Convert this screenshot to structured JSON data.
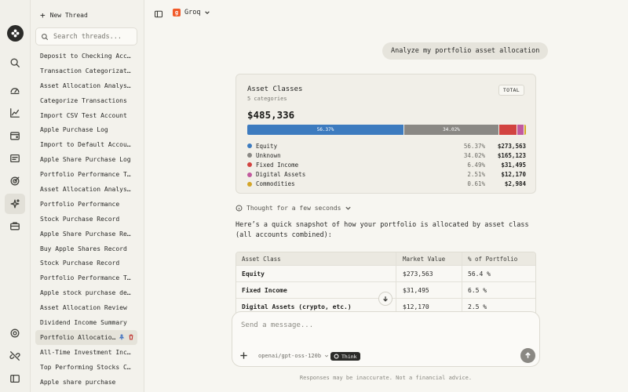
{
  "sidebar_threads": {
    "new_thread_label": "New Thread",
    "search_placeholder": "Search threads...",
    "items": [
      {
        "label": "Deposit to Checking Account"
      },
      {
        "label": "Transaction Categorization …"
      },
      {
        "label": "Asset Allocation Analysis R…"
      },
      {
        "label": "Categorize Transactions"
      },
      {
        "label": "Import CSV Test Account"
      },
      {
        "label": "Apple Purchase Log"
      },
      {
        "label": "Import to Default Account"
      },
      {
        "label": "Apple Share Purchase Log"
      },
      {
        "label": "Portfolio Performance This …"
      },
      {
        "label": "Asset Allocation Analysis"
      },
      {
        "label": "Portfolio Performance"
      },
      {
        "label": "Stock Purchase Record"
      },
      {
        "label": "Apple Share Purchase Record"
      },
      {
        "label": "Buy Apple Shares Record"
      },
      {
        "label": "Stock Purchase Record"
      },
      {
        "label": "Portfolio Performance This …"
      },
      {
        "label": "Apple stock purchase details"
      },
      {
        "label": "Asset Allocation Review"
      },
      {
        "label": "Dividend Income Summary"
      },
      {
        "label": "Portfolio Allocation …",
        "active": true
      },
      {
        "label": "All-Time Investment Income"
      },
      {
        "label": "Top Performing Stocks Check"
      },
      {
        "label": "Apple share purchase"
      }
    ]
  },
  "rail_icons": [
    "logo-icon",
    "search-icon",
    "dashboard-icon",
    "chart-icon",
    "wallet-icon",
    "transactions-icon",
    "target-icon",
    "sparkle-icon",
    "briefcase-icon",
    "settings-icon",
    "link-off-icon",
    "sidebar-icon"
  ],
  "topbar": {
    "model_label": "Groq",
    "groq_mark": "g"
  },
  "chat": {
    "user_message": "Analyze my portfolio asset allocation",
    "card": {
      "title": "Asset Classes",
      "subtitle": "5 categories",
      "badge": "TOTAL",
      "total": "$485,336"
    },
    "thought_label": "Thought for a few seconds",
    "answer_text": "Here’s a quick snapshot of how your portfolio is allocated by asset class (all accounts combined):",
    "table": {
      "headers": [
        "Asset Class",
        "Market Value",
        "% of Portfolio"
      ],
      "rows": [
        [
          "Equity",
          "$273,563",
          "56.4 %"
        ],
        [
          "Fixed Income",
          "$31,495",
          "6.5 %"
        ],
        [
          "Digital Assets (crypto, etc.)",
          "$12,170",
          "2.5 %"
        ]
      ]
    }
  },
  "composer": {
    "placeholder": "Send a message...",
    "model": "openai/gpt-oss-120b",
    "think_label": "Think"
  },
  "disclaimer": "Responses may be inaccurate. Not a financial advice.",
  "chart_data": {
    "type": "bar",
    "orientation": "stacked-horizontal",
    "title": "Asset Classes",
    "categories": [
      "Equity",
      "Unknown",
      "Fixed Income",
      "Digital Assets",
      "Commodities"
    ],
    "values": [
      273563,
      165123,
      31495,
      12170,
      2984
    ],
    "percent_labels": [
      "56.37%",
      "34.02%",
      "6.49%",
      "2.51%",
      "0.61%"
    ],
    "value_labels": [
      "$273,563",
      "$165,123",
      "$31,495",
      "$12,170",
      "$2,984"
    ],
    "bar_labels": [
      "56.37%",
      "34.02%",
      "",
      "",
      ""
    ],
    "colors": [
      "#3d7bbf",
      "#8a8884",
      "#d24340",
      "#c25a9e",
      "#d4a528"
    ],
    "legend_position": "bottom"
  }
}
